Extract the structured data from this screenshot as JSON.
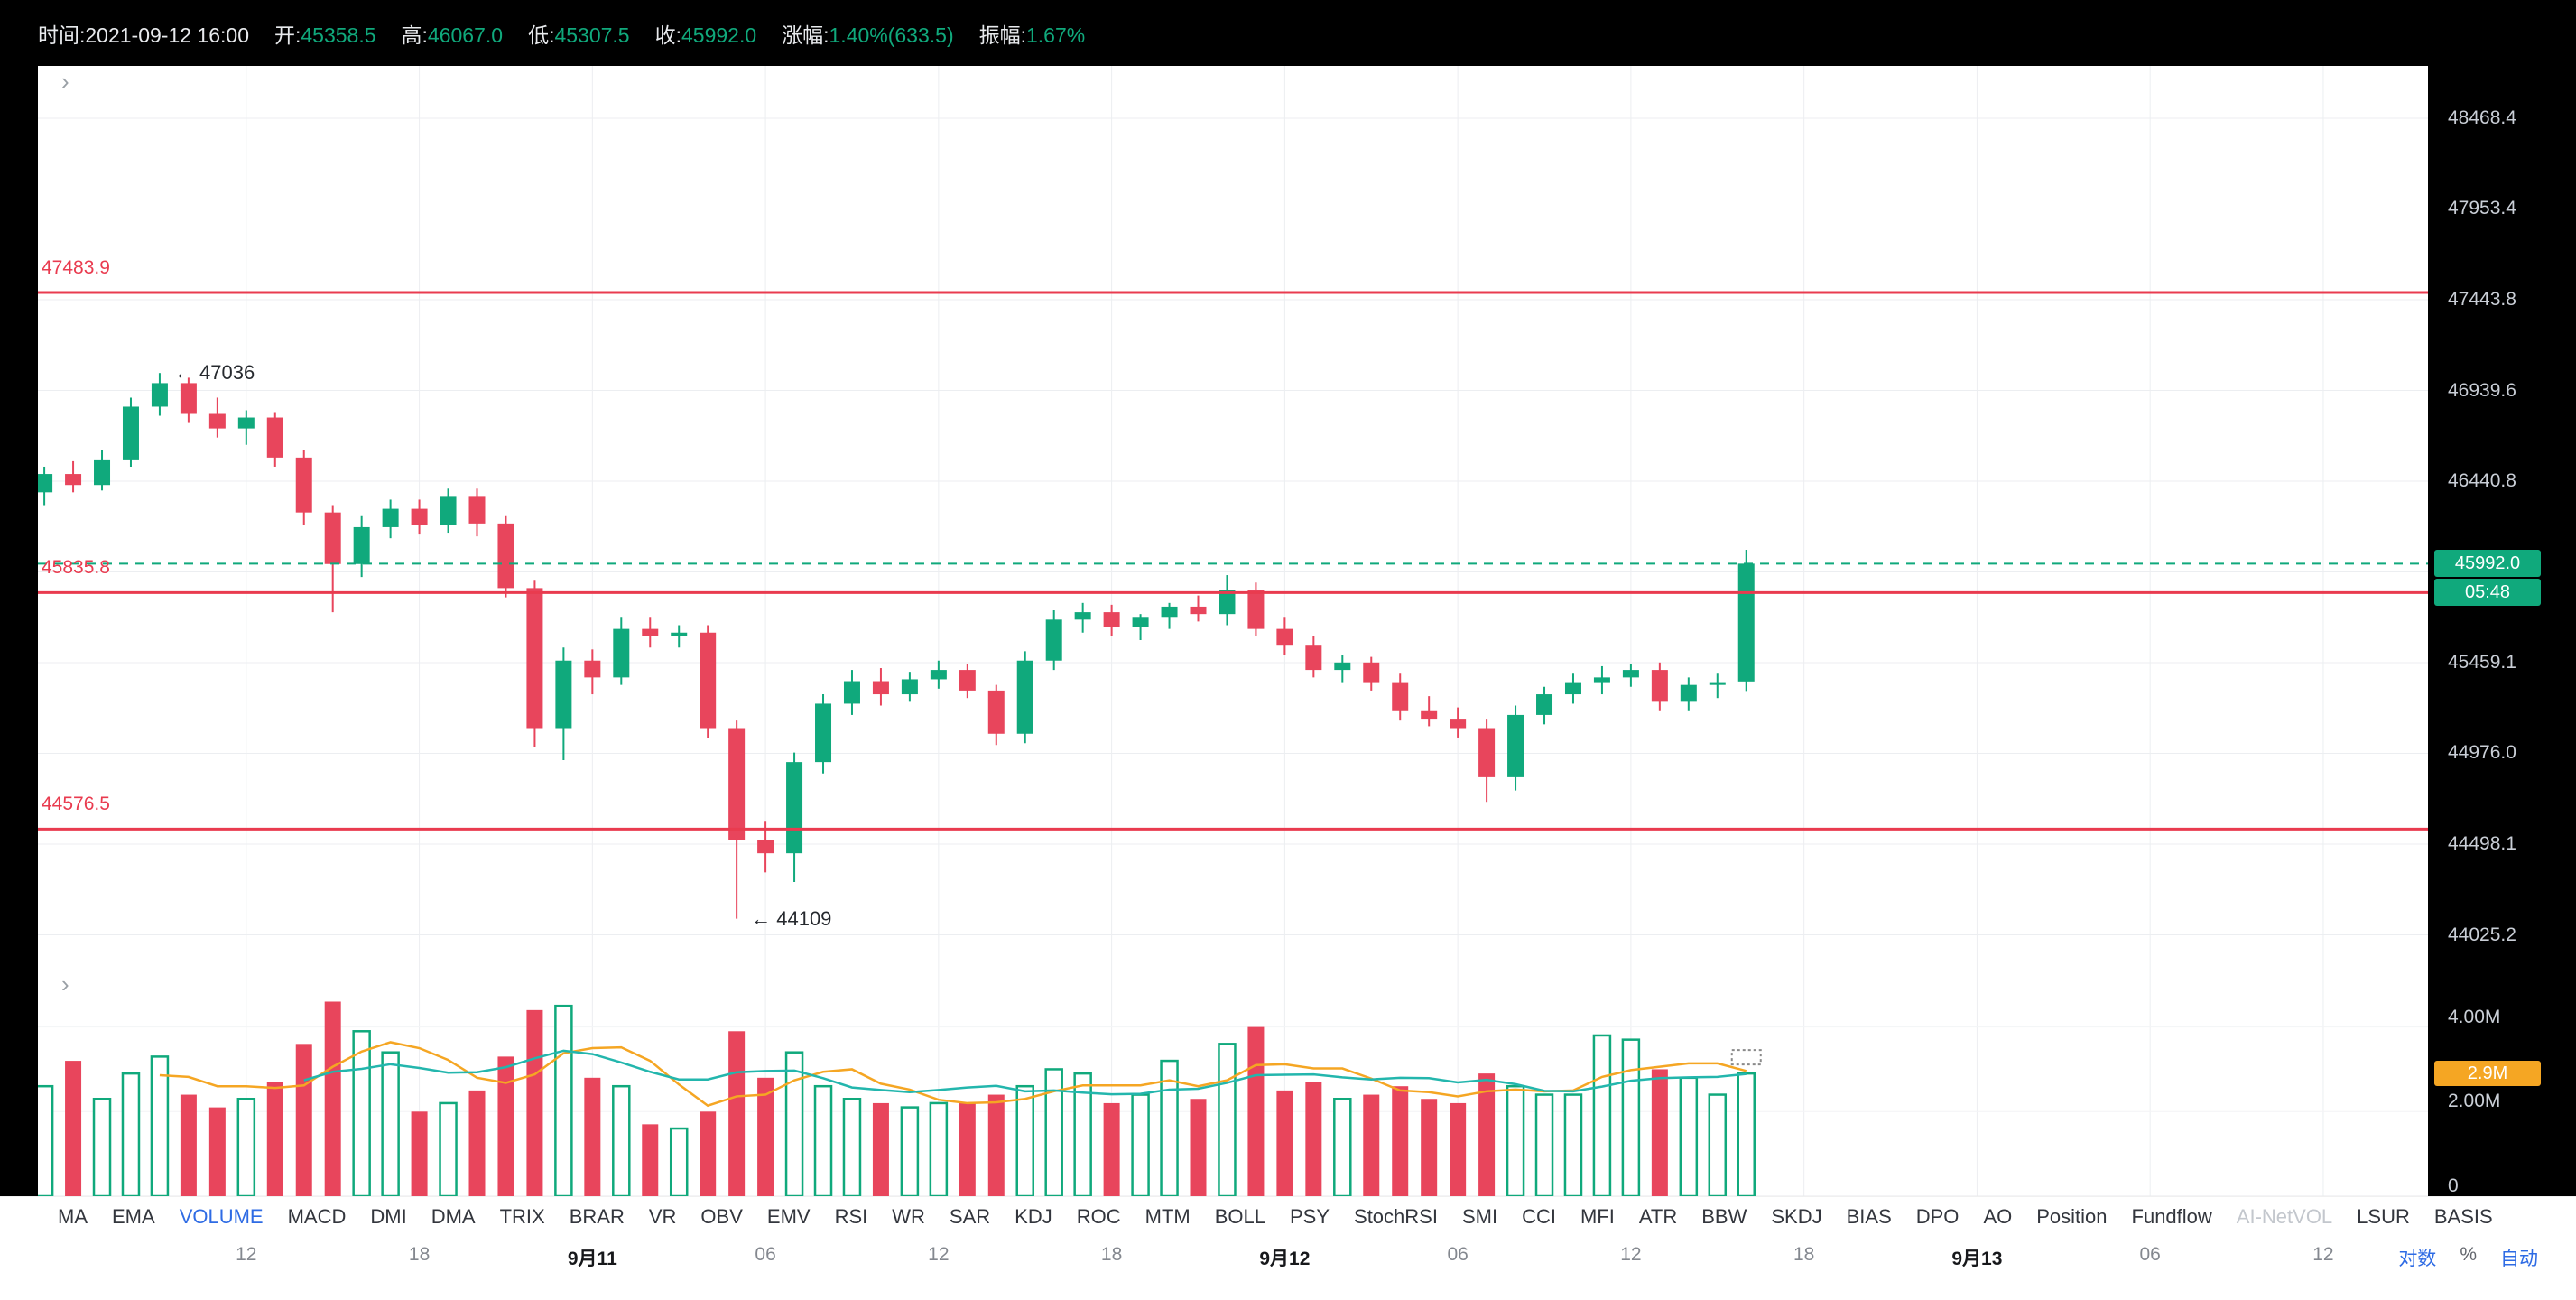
{
  "topbar": {
    "time_label": "时间:",
    "time_value": "2021-09-12 16:00",
    "open_label": "开:",
    "open_value": "45358.5",
    "high_label": "高:",
    "high_value": "46067.0",
    "low_label": "低:",
    "low_value": "45307.5",
    "close_label": "收:",
    "close_value": "45992.0",
    "change_label": "涨幅:",
    "change_value": "1.40%(633.5)",
    "amplitude_label": "振幅:",
    "amplitude_value": "1.67%"
  },
  "price_axis": {
    "labels": [
      {
        "text": "48468.4",
        "value": 48468.4
      },
      {
        "text": "47953.4",
        "value": 47953.4
      },
      {
        "text": "47443.8",
        "value": 47443.8
      },
      {
        "text": "46939.6",
        "value": 46939.6
      },
      {
        "text": "46440.8",
        "value": 46440.8
      },
      {
        "text": "45459.1",
        "value": 45459.1
      },
      {
        "text": "44976.0",
        "value": 44976.0
      },
      {
        "text": "44498.1",
        "value": 44498.1
      },
      {
        "text": "44025.2",
        "value": 44025.2
      }
    ],
    "grid_values": [
      48468.4,
      47953.4,
      47443.8,
      46939.6,
      46440.8,
      45947.3,
      45459.1,
      44976.0,
      44498.1,
      44025.2
    ],
    "current_price_badge": "45992.0",
    "countdown_badge": "05:48"
  },
  "volume_axis": {
    "labels": [
      {
        "text": "4.00M",
        "value": 4.0
      },
      {
        "text": "2.00M",
        "value": 2.0
      },
      {
        "text": "0",
        "value": 0
      }
    ],
    "current_volume": 2.9,
    "current_volume_badge": "2.9M"
  },
  "current_price": 45992.0,
  "alert_lines": [
    {
      "label": "47483.9",
      "value": 47483.9
    },
    {
      "label": "45835.8",
      "value": 45835.8
    },
    {
      "label": "44576.5",
      "value": 44576.5
    }
  ],
  "annotations": [
    {
      "text": "← 47036",
      "price": 47036,
      "candle_index": 4
    },
    {
      "text": "← 44109",
      "price": 44109,
      "candle_index": 24
    }
  ],
  "chart_data": {
    "type": "candlestick",
    "scale": "log",
    "interval": "1h",
    "note": "columns: open, high, low, close, volume_millions",
    "candles": [
      [
        46380,
        46520,
        46310,
        46480,
        2.6
      ],
      [
        46480,
        46550,
        46380,
        46420,
        3.2
      ],
      [
        46420,
        46610,
        46390,
        46560,
        2.3
      ],
      [
        46560,
        46900,
        46520,
        46850,
        2.9
      ],
      [
        46850,
        47036,
        46800,
        46980,
        3.3
      ],
      [
        46980,
        47010,
        46760,
        46810,
        2.4
      ],
      [
        46810,
        46900,
        46680,
        46730,
        2.1
      ],
      [
        46730,
        46830,
        46640,
        46790,
        2.3
      ],
      [
        46790,
        46820,
        46520,
        46570,
        2.7
      ],
      [
        46570,
        46610,
        46200,
        46270,
        3.6
      ],
      [
        46270,
        46310,
        45730,
        45990,
        4.6
      ],
      [
        45990,
        46250,
        45920,
        46190,
        3.9
      ],
      [
        46190,
        46340,
        46130,
        46290,
        3.4
      ],
      [
        46290,
        46340,
        46150,
        46200,
        2.0
      ],
      [
        46200,
        46400,
        46160,
        46360,
        2.2
      ],
      [
        46360,
        46400,
        46140,
        46210,
        2.5
      ],
      [
        46210,
        46250,
        45810,
        45860,
        3.3
      ],
      [
        45860,
        45900,
        45010,
        45110,
        4.4
      ],
      [
        45110,
        45540,
        44940,
        45470,
        4.5
      ],
      [
        45470,
        45530,
        45290,
        45380,
        2.8
      ],
      [
        45380,
        45700,
        45340,
        45640,
        2.6
      ],
      [
        45640,
        45700,
        45540,
        45600,
        1.7
      ],
      [
        45600,
        45660,
        45540,
        45620,
        1.6
      ],
      [
        45620,
        45660,
        45060,
        45110,
        2.0
      ],
      [
        45110,
        45150,
        44109,
        44520,
        3.9
      ],
      [
        44520,
        44620,
        44350,
        44450,
        2.8
      ],
      [
        44450,
        44980,
        44300,
        44930,
        3.4
      ],
      [
        44930,
        45290,
        44870,
        45240,
        2.6
      ],
      [
        45240,
        45420,
        45180,
        45360,
        2.3
      ],
      [
        45360,
        45430,
        45230,
        45290,
        2.2
      ],
      [
        45290,
        45410,
        45250,
        45370,
        2.1
      ],
      [
        45370,
        45470,
        45320,
        45420,
        2.2
      ],
      [
        45420,
        45450,
        45270,
        45310,
        2.2
      ],
      [
        45310,
        45340,
        45020,
        45080,
        2.4
      ],
      [
        45080,
        45520,
        45030,
        45470,
        2.6
      ],
      [
        45470,
        45740,
        45420,
        45690,
        3.0
      ],
      [
        45690,
        45780,
        45620,
        45730,
        2.9
      ],
      [
        45730,
        45770,
        45600,
        45650,
        2.2
      ],
      [
        45650,
        45720,
        45580,
        45700,
        2.4
      ],
      [
        45700,
        45780,
        45640,
        45760,
        3.2
      ],
      [
        45760,
        45820,
        45680,
        45720,
        2.3
      ],
      [
        45720,
        45930,
        45660,
        45850,
        3.6
      ],
      [
        45850,
        45890,
        45600,
        45640,
        4.0
      ],
      [
        45640,
        45700,
        45500,
        45550,
        2.5
      ],
      [
        45550,
        45600,
        45380,
        45420,
        2.7
      ],
      [
        45420,
        45500,
        45350,
        45460,
        2.3
      ],
      [
        45460,
        45490,
        45310,
        45350,
        2.4
      ],
      [
        45350,
        45400,
        45150,
        45200,
        2.6
      ],
      [
        45200,
        45280,
        45120,
        45160,
        2.3
      ],
      [
        45160,
        45220,
        45060,
        45110,
        2.2
      ],
      [
        45110,
        45160,
        44720,
        44850,
        2.9
      ],
      [
        44850,
        45230,
        44780,
        45180,
        2.6
      ],
      [
        45180,
        45330,
        45130,
        45290,
        2.4
      ],
      [
        45290,
        45400,
        45240,
        45350,
        2.4
      ],
      [
        45350,
        45440,
        45290,
        45380,
        3.8
      ],
      [
        45380,
        45450,
        45330,
        45420,
        3.7
      ],
      [
        45420,
        45460,
        45200,
        45250,
        3.0
      ],
      [
        45250,
        45380,
        45200,
        45340,
        2.8
      ],
      [
        45340,
        45400,
        45270,
        45350,
        2.4
      ],
      [
        45358.5,
        46067.0,
        45307.5,
        45992.0,
        2.9
      ]
    ],
    "volume_ma_periods": [
      5,
      10
    ]
  },
  "time_axis": {
    "labels": [
      {
        "text": "12",
        "hour": 7,
        "bold": false
      },
      {
        "text": "18",
        "hour": 13,
        "bold": false
      },
      {
        "text": "9月11",
        "hour": 19,
        "bold": true
      },
      {
        "text": "06",
        "hour": 25,
        "bold": false
      },
      {
        "text": "12",
        "hour": 31,
        "bold": false
      },
      {
        "text": "18",
        "hour": 37,
        "bold": false
      },
      {
        "text": "9月12",
        "hour": 43,
        "bold": true
      },
      {
        "text": "06",
        "hour": 49,
        "bold": false
      },
      {
        "text": "12",
        "hour": 55,
        "bold": false
      },
      {
        "text": "18",
        "hour": 61,
        "bold": false
      },
      {
        "text": "9月13",
        "hour": 67,
        "bold": true
      },
      {
        "text": "06",
        "hour": 73,
        "bold": false
      },
      {
        "text": "12",
        "hour": 79,
        "bold": false
      }
    ],
    "controls": [
      {
        "text": "对数",
        "active": true
      },
      {
        "text": "%",
        "active": false
      },
      {
        "text": "自动",
        "active": true
      }
    ]
  },
  "indicators": {
    "items": [
      {
        "label": "MA",
        "state": "normal"
      },
      {
        "label": "EMA",
        "state": "normal"
      },
      {
        "label": "VOLUME",
        "state": "active"
      },
      {
        "label": "MACD",
        "state": "normal"
      },
      {
        "label": "DMI",
        "state": "normal"
      },
      {
        "label": "DMA",
        "state": "normal"
      },
      {
        "label": "TRIX",
        "state": "normal"
      },
      {
        "label": "BRAR",
        "state": "normal"
      },
      {
        "label": "VR",
        "state": "normal"
      },
      {
        "label": "OBV",
        "state": "normal"
      },
      {
        "label": "EMV",
        "state": "normal"
      },
      {
        "label": "RSI",
        "state": "normal"
      },
      {
        "label": "WR",
        "state": "normal"
      },
      {
        "label": "SAR",
        "state": "normal"
      },
      {
        "label": "KDJ",
        "state": "normal"
      },
      {
        "label": "ROC",
        "state": "normal"
      },
      {
        "label": "MTM",
        "state": "normal"
      },
      {
        "label": "BOLL",
        "state": "normal"
      },
      {
        "label": "PSY",
        "state": "normal"
      },
      {
        "label": "StochRSI",
        "state": "normal"
      },
      {
        "label": "SMI",
        "state": "normal"
      },
      {
        "label": "CCI",
        "state": "normal"
      },
      {
        "label": "MFI",
        "state": "normal"
      },
      {
        "label": "ATR",
        "state": "normal"
      },
      {
        "label": "BBW",
        "state": "normal"
      },
      {
        "label": "SKDJ",
        "state": "normal"
      },
      {
        "label": "BIAS",
        "state": "normal"
      },
      {
        "label": "DPO",
        "state": "normal"
      },
      {
        "label": "AO",
        "state": "normal"
      },
      {
        "label": "Position",
        "state": "normal"
      },
      {
        "label": "Fundflow",
        "state": "normal"
      },
      {
        "label": "AI-NetVOL",
        "state": "disabled"
      },
      {
        "label": "LSUR",
        "state": "normal"
      },
      {
        "label": "BASIS",
        "state": "normal"
      }
    ]
  },
  "colors": {
    "up": "#10a97c",
    "down": "#e8455c",
    "alert_red": "#e93b4f",
    "accent_blue": "#2e6be4",
    "volume_ma_fast": "#f5a623",
    "volume_ma_slow": "#23b6ad",
    "badge_orange": "#f5a623",
    "grid": "#eceef1"
  }
}
